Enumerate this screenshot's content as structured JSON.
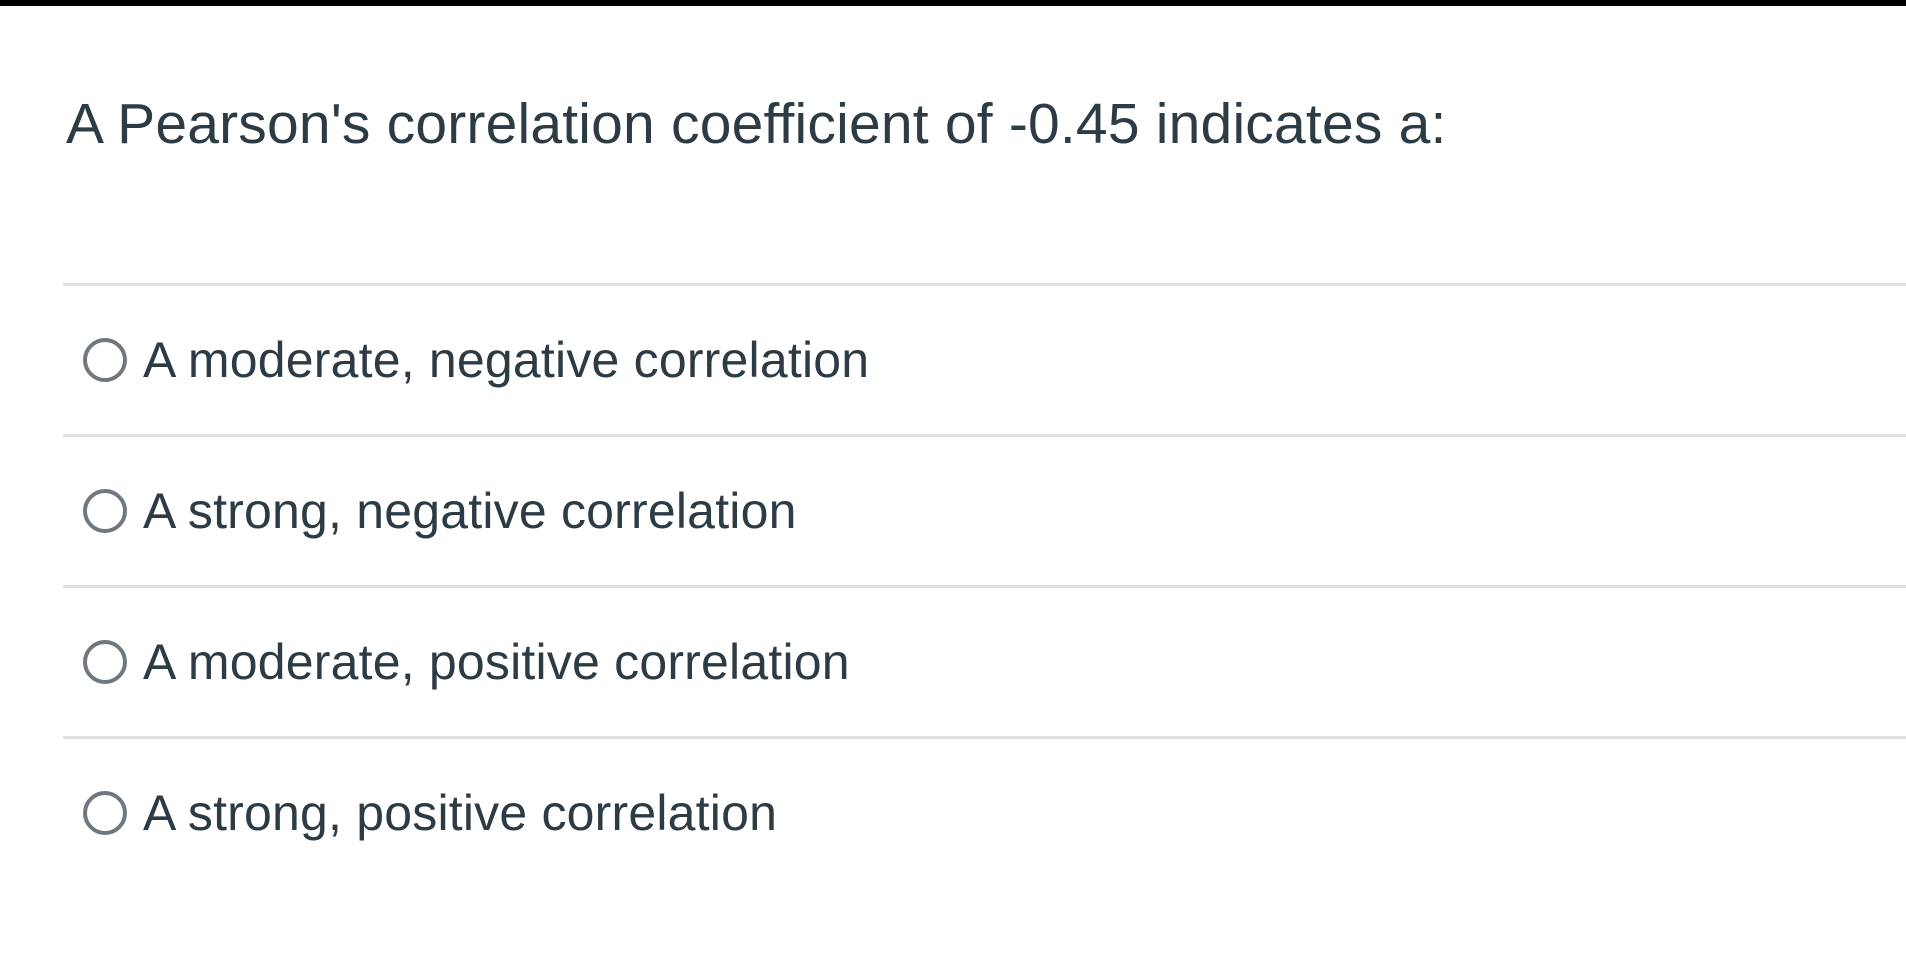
{
  "page": {
    "background_color": "#FFFFFF",
    "top_bar_color": "#000000",
    "text_color": "#2D3B45",
    "divider_color": "#E0E0E0",
    "radio_border_color": "#6F7780"
  },
  "question": {
    "text": "A Pearson's correlation coefficient of -0.45 indicates a:"
  },
  "options": [
    {
      "label": "A moderate, negative correlation",
      "selected": false
    },
    {
      "label": "A strong, negative correlation",
      "selected": false
    },
    {
      "label": "A moderate, positive correlation",
      "selected": false
    },
    {
      "label": "A strong, positive correlation",
      "selected": false
    }
  ]
}
